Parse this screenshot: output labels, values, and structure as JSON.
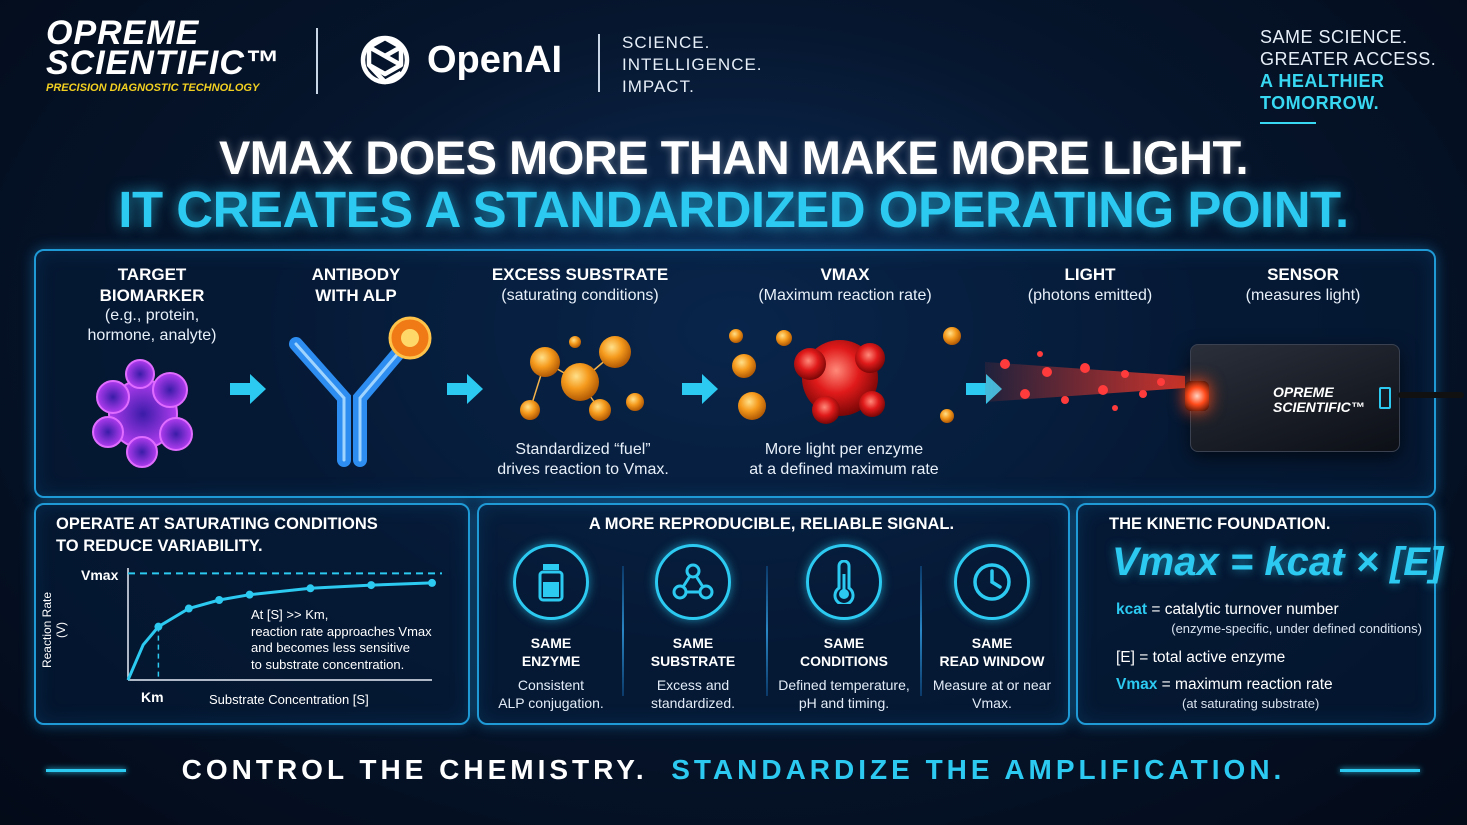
{
  "header": {
    "brand_line1": "OPREME",
    "brand_line2": "SCIENTIFIC™",
    "brand_tagline": "PRECISION DIAGNOSTIC TECHNOLOGY",
    "partner": "OpenAI",
    "slogan": [
      "SCIENCE.",
      "INTELLIGENCE.",
      "IMPACT."
    ],
    "top_right": {
      "line1": "SAME SCIENCE.",
      "line2": "GREATER ACCESS.",
      "line3": "A HEALTHIER",
      "line4": "TOMORROW."
    }
  },
  "headline": {
    "line1": "VMAX DOES MORE THAN MAKE MORE LIGHT.",
    "line2": "IT CREATES A STANDARDIZED OPERATING POINT."
  },
  "steps": [
    {
      "title": "TARGET\nBIOMARKER",
      "sub": "(e.g., protein,\nhormone, analyte)"
    },
    {
      "title": "ANTIBODY\nWITH ALP",
      "sub": ""
    },
    {
      "title": "EXCESS SUBSTRATE",
      "sub": "(saturating conditions)",
      "caption": "Standardized “fuel”\ndrives reaction to Vmax."
    },
    {
      "title": "VMAX",
      "sub": "(Maximum reaction rate)",
      "caption": "More light per enzyme\nat a defined maximum rate"
    },
    {
      "title": "LIGHT",
      "sub": "(photons emitted)"
    },
    {
      "title": "SENSOR",
      "sub": "(measures light)"
    }
  ],
  "sensor_label": {
    "line1": "OPREME",
    "line2": "SCIENTIFIC™"
  },
  "saturation": {
    "title": "OPERATE AT SATURATING CONDITIONS\nTO REDUCE VARIABILITY.",
    "vmax_label": "Vmax",
    "km_label": "Km",
    "ylabel": "Reaction Rate\n(V)",
    "xlabel": "Substrate Concentration [S]",
    "note": "At [S] >> Km,\nreaction rate approaches Vmax\nand becomes less sensitive\nto substrate concentration."
  },
  "chart_data": {
    "type": "line",
    "title": "",
    "xlabel": "Substrate Concentration [S]",
    "ylabel": "Reaction Rate (V)",
    "series": [
      {
        "x": [
          0,
          0.5,
          1,
          2,
          3,
          4,
          6,
          8,
          10
        ],
        "values": [
          0,
          0.33,
          0.5,
          0.67,
          0.75,
          0.8,
          0.86,
          0.89,
          0.91
        ]
      }
    ],
    "markers": [
      1,
      2,
      3,
      4,
      6,
      8,
      10
    ],
    "reference_lines": [
      {
        "label": "Vmax",
        "y": 1.0
      },
      {
        "label": "Km",
        "x": 1
      }
    ],
    "ylim": [
      0,
      1.05
    ],
    "xlim": [
      0,
      10
    ]
  },
  "reproducible": {
    "title": "A MORE REPRODUCIBLE, RELIABLE SIGNAL.",
    "features": [
      {
        "icon": "vial-icon",
        "t1": "SAME\nENZYME",
        "t2": "Consistent\nALP conjugation."
      },
      {
        "icon": "molecule-icon",
        "t1": "SAME\nSUBSTRATE",
        "t2": "Excess and\nstandardized."
      },
      {
        "icon": "thermometer-icon",
        "t1": "SAME\nCONDITIONS",
        "t2": "Defined temperature,\npH and timing."
      },
      {
        "icon": "clock-icon",
        "t1": "SAME\nREAD WINDOW",
        "t2": "Measure at or near\nVmax."
      }
    ]
  },
  "kinetic": {
    "title": "THE KINETIC FOUNDATION.",
    "formula": "Vmax = kcat × [E]",
    "defs": [
      {
        "k": "kcat",
        "v": " = catalytic turnover number",
        "s": "(enzyme-specific, under defined conditions)"
      },
      {
        "k": "[E]",
        "v": " = total active enzyme",
        "s": ""
      },
      {
        "k": "Vmax",
        "v": " = maximum reaction rate",
        "s": "(at saturating substrate)"
      }
    ]
  },
  "footer": {
    "part1": "CONTROL THE CHEMISTRY.",
    "part2": "STANDARDIZE THE AMPLIFICATION."
  },
  "colors": {
    "accent": "#2cc9f0",
    "gold": "#f2d021",
    "background": "#06162e"
  }
}
